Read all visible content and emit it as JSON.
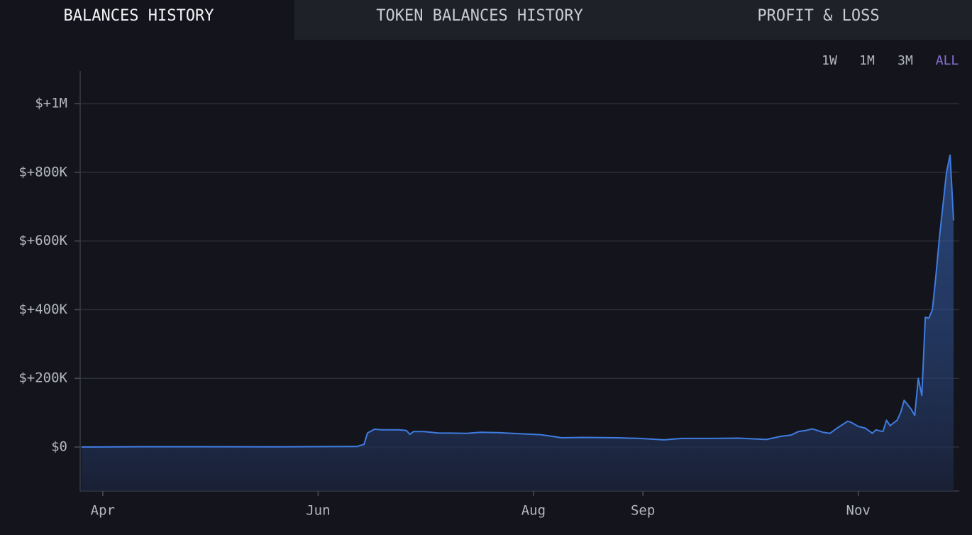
{
  "tabs": [
    {
      "label": "BALANCES HISTORY",
      "active": true
    },
    {
      "label": "TOKEN BALANCES HISTORY",
      "active": false
    },
    {
      "label": "PROFIT & LOSS",
      "active": false
    }
  ],
  "ranges": [
    {
      "label": "1W",
      "active": false
    },
    {
      "label": "1M",
      "active": false
    },
    {
      "label": "3M",
      "active": false
    },
    {
      "label": "ALL",
      "active": true
    }
  ],
  "chart_data": {
    "type": "area",
    "color": "#3f7be0",
    "grid": true,
    "x": [
      -6,
      10,
      30,
      50,
      72,
      74,
      75,
      77,
      79,
      84,
      86,
      87,
      88,
      91,
      95,
      103,
      107,
      112,
      118,
      124,
      128,
      130,
      136,
      146,
      152,
      159,
      164,
      172,
      180,
      188,
      192,
      195,
      197,
      199,
      201,
      204,
      206,
      208,
      211,
      212,
      214,
      216,
      218,
      219,
      221,
      222,
      223,
      225,
      226,
      227,
      229,
      230,
      231,
      232,
      233,
      234,
      235,
      236,
      237,
      239,
      240,
      241
    ],
    "series": [
      {
        "name": "Balance",
        "color": "#3f7be0",
        "values": [
          0,
          1000,
          1000,
          500,
          1500,
          8000,
          41000,
          52000,
          50000,
          50000,
          48000,
          37000,
          45000,
          45000,
          41000,
          40000,
          43000,
          42000,
          39000,
          36000,
          30000,
          27000,
          28000,
          27000,
          25000,
          21000,
          25000,
          25000,
          26000,
          22000,
          31000,
          35000,
          45000,
          48000,
          53000,
          43000,
          40000,
          55000,
          75000,
          72000,
          60000,
          55000,
          40000,
          50000,
          45000,
          78000,
          62000,
          78000,
          100000,
          136000,
          110000,
          92000,
          200000,
          150000,
          378000,
          375000,
          400000,
          500000,
          610000,
          800000,
          850000,
          660000
        ]
      }
    ],
    "xlim": [
      -6.4,
      242.6
    ],
    "xticks": [
      {
        "value": 0,
        "label": "Apr"
      },
      {
        "value": 61,
        "label": "Jun"
      },
      {
        "value": 122,
        "label": "Aug"
      },
      {
        "value": 153,
        "label": "Sep"
      },
      {
        "value": 214,
        "label": "Nov"
      }
    ],
    "ylim": [
      -128000,
      1095000
    ],
    "yticks": [
      {
        "value": 0,
        "label": "$0"
      },
      {
        "value": 200000,
        "label": "$+200K"
      },
      {
        "value": 400000,
        "label": "$+400K"
      },
      {
        "value": 600000,
        "label": "$+600K"
      },
      {
        "value": 800000,
        "label": "$+800K"
      },
      {
        "value": 1000000,
        "label": "$+1M"
      }
    ]
  }
}
